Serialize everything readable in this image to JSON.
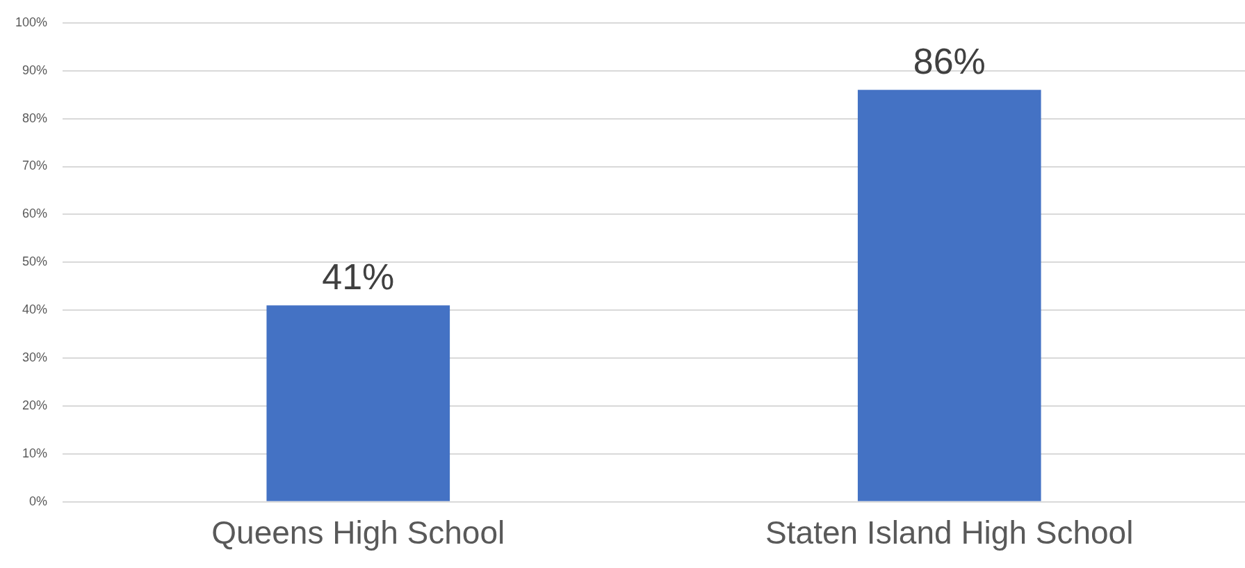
{
  "chart_data": {
    "type": "bar",
    "categories": [
      "Queens High School",
      "Staten Island High School"
    ],
    "values": [
      41,
      86
    ],
    "value_labels": [
      "41%",
      "86%"
    ],
    "color": "#4472c4",
    "ylim": [
      0,
      100
    ],
    "yticks": [
      {
        "value": 0,
        "label": "0%"
      },
      {
        "value": 10,
        "label": "10%"
      },
      {
        "value": 20,
        "label": "20%"
      },
      {
        "value": 30,
        "label": "30%"
      },
      {
        "value": 40,
        "label": "40%"
      },
      {
        "value": 50,
        "label": "50%"
      },
      {
        "value": 60,
        "label": "60%"
      },
      {
        "value": 70,
        "label": "70%"
      },
      {
        "value": 80,
        "label": "80%"
      },
      {
        "value": 90,
        "label": "90%"
      },
      {
        "value": 100,
        "label": "100%"
      }
    ],
    "grid": "y"
  }
}
